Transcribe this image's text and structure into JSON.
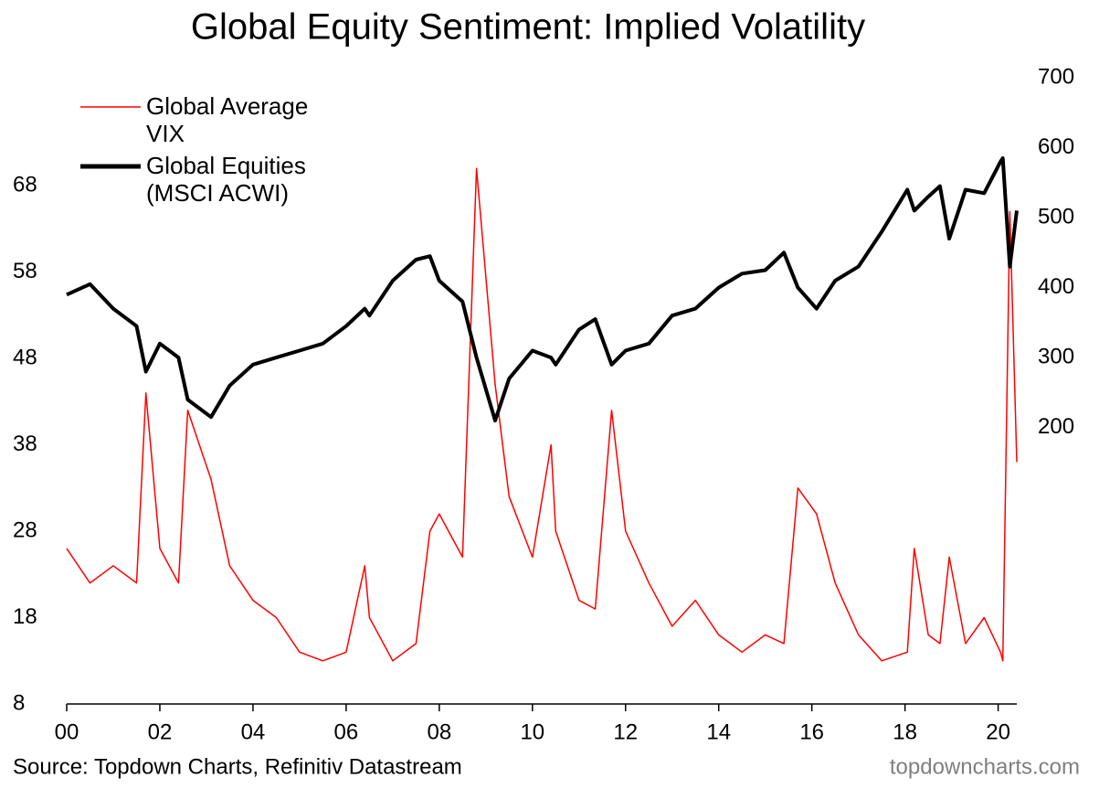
{
  "chart_data": {
    "type": "line",
    "title": "Global Equity Sentiment: Implied Volatility",
    "source": "Source: Topdown Charts, Refinitiv Datastream",
    "watermark": "topdowncharts.com",
    "x": [
      2000,
      2000.5,
      2001,
      2001.5,
      2001.7,
      2002,
      2002.4,
      2002.6,
      2003.1,
      2003.5,
      2004,
      2004.5,
      2005,
      2005.5,
      2006,
      2006.4,
      2006.5,
      2007,
      2007.5,
      2007.8,
      2008,
      2008.5,
      2008.8,
      2009.2,
      2009.5,
      2010,
      2010.4,
      2010.5,
      2011,
      2011.35,
      2011.7,
      2012,
      2012.5,
      2013,
      2013.5,
      2014,
      2014.5,
      2015,
      2015.4,
      2015.7,
      2016.1,
      2016.5,
      2017,
      2017.5,
      2018.05,
      2018.2,
      2018.5,
      2018.75,
      2018.95,
      2019.3,
      2019.7,
      2020.05,
      2020.1,
      2020.25,
      2020.4
    ],
    "xlim": [
      2000,
      2020.4
    ],
    "xticks": [
      {
        "value": 2000,
        "label": "00"
      },
      {
        "value": 2002,
        "label": "02"
      },
      {
        "value": 2004,
        "label": "04"
      },
      {
        "value": 2006,
        "label": "06"
      },
      {
        "value": 2008,
        "label": "08"
      },
      {
        "value": 2010,
        "label": "10"
      },
      {
        "value": 2012,
        "label": "12"
      },
      {
        "value": 2014,
        "label": "14"
      },
      {
        "value": 2016,
        "label": "16"
      },
      {
        "value": 2018,
        "label": "18"
      },
      {
        "value": 2020,
        "label": "20"
      }
    ],
    "ylim": [
      8,
      80.5
    ],
    "yticks": [
      8,
      18,
      28,
      38,
      48,
      58,
      68
    ],
    "y2lim": [
      -195,
      700
    ],
    "y2ticks": [
      200,
      300,
      400,
      500,
      600,
      700
    ],
    "legend": "upper left",
    "series": [
      {
        "name": "Global Average VIX",
        "color": "#ff0000",
        "values": [
          26,
          22,
          24,
          22,
          44,
          26,
          22,
          42,
          34,
          24,
          20,
          18,
          14,
          13,
          14,
          24,
          18,
          13,
          15,
          28,
          30,
          25,
          70,
          45,
          32,
          25,
          38,
          28,
          20,
          19,
          42,
          28,
          22,
          17,
          20,
          16,
          14,
          16,
          15,
          33,
          30,
          22,
          16,
          13,
          14,
          26,
          16,
          15,
          25,
          15,
          18,
          14,
          13,
          65,
          36
        ]
      },
      {
        "name": "Global Equities (MSCI ACWI)",
        "color": "#000000",
        "axis": "y2",
        "values": [
          390,
          405,
          370,
          345,
          280,
          320,
          300,
          240,
          215,
          260,
          290,
          300,
          310,
          320,
          345,
          370,
          360,
          410,
          440,
          445,
          410,
          380,
          300,
          210,
          270,
          310,
          300,
          290,
          340,
          355,
          290,
          310,
          320,
          360,
          370,
          400,
          420,
          425,
          450,
          400,
          370,
          410,
          430,
          480,
          540,
          510,
          530,
          545,
          470,
          540,
          535,
          580,
          585,
          430,
          510
        ]
      }
    ]
  }
}
